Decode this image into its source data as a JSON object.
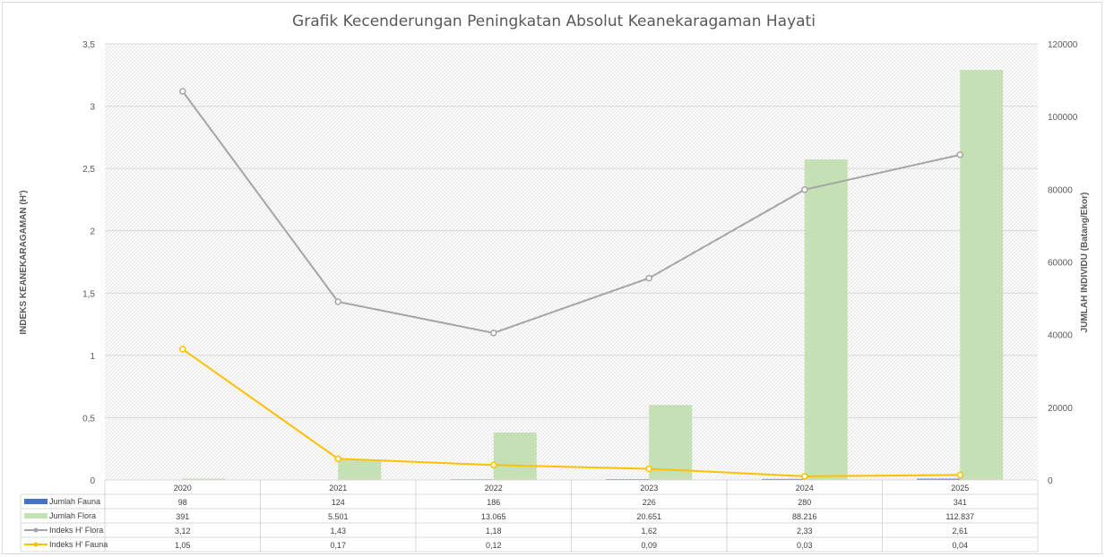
{
  "chart_data": {
    "type": "bar",
    "title": "Grafik Kecenderungan Peningkatan Absolut Keanekaragaman Hayati",
    "categories": [
      "2020",
      "2021",
      "2022",
      "2023",
      "2024",
      "2025"
    ],
    "ylabel_left": "INDEKS KEANEKARAGAMAN (H')",
    "ylabel_right": "JUMLAH  INDIVIDU (Batang/Ekor)",
    "ylim_left": [
      0,
      3.5
    ],
    "ylim_right": [
      0,
      120000
    ],
    "yticks_left": [
      "0",
      "0,5",
      "1",
      "1,5",
      "2",
      "2,5",
      "3",
      "3,5"
    ],
    "yticks_right": [
      "0",
      "20000",
      "40000",
      "60000",
      "80000",
      "100000",
      "120000"
    ],
    "grid": true,
    "legend": "data-table-bottom",
    "series": [
      {
        "name": "Jumlah Fauna",
        "kind": "bar",
        "axis": "right",
        "color": "#4472c4",
        "values": [
          98,
          124,
          186,
          226,
          280,
          341
        ],
        "labels": [
          "98",
          "124",
          "186",
          "226",
          "280",
          "341"
        ]
      },
      {
        "name": "Jumlah  Flora",
        "kind": "bar",
        "axis": "right",
        "color": "#c5e0b4",
        "values": [
          391,
          5501,
          13065,
          20651,
          88216,
          112837
        ],
        "labels": [
          "391",
          "5.501",
          "13.065",
          "20.651",
          "88.216",
          "112.837"
        ]
      },
      {
        "name": "Indeks H' Flora",
        "kind": "line",
        "axis": "left",
        "color": "#a5a5a5",
        "values": [
          3.12,
          1.43,
          1.18,
          1.62,
          2.33,
          2.61
        ],
        "labels": [
          "3,12",
          "1,43",
          "1,18",
          "1,62",
          "2,33",
          "2,61"
        ]
      },
      {
        "name": "Indeks H' Fauna",
        "kind": "line",
        "axis": "left",
        "color": "#ffc000",
        "values": [
          1.05,
          0.17,
          0.12,
          0.09,
          0.03,
          0.04
        ],
        "labels": [
          "1,05",
          "0,17",
          "0,12",
          "0,09",
          "0,03",
          "0,04"
        ]
      }
    ]
  }
}
